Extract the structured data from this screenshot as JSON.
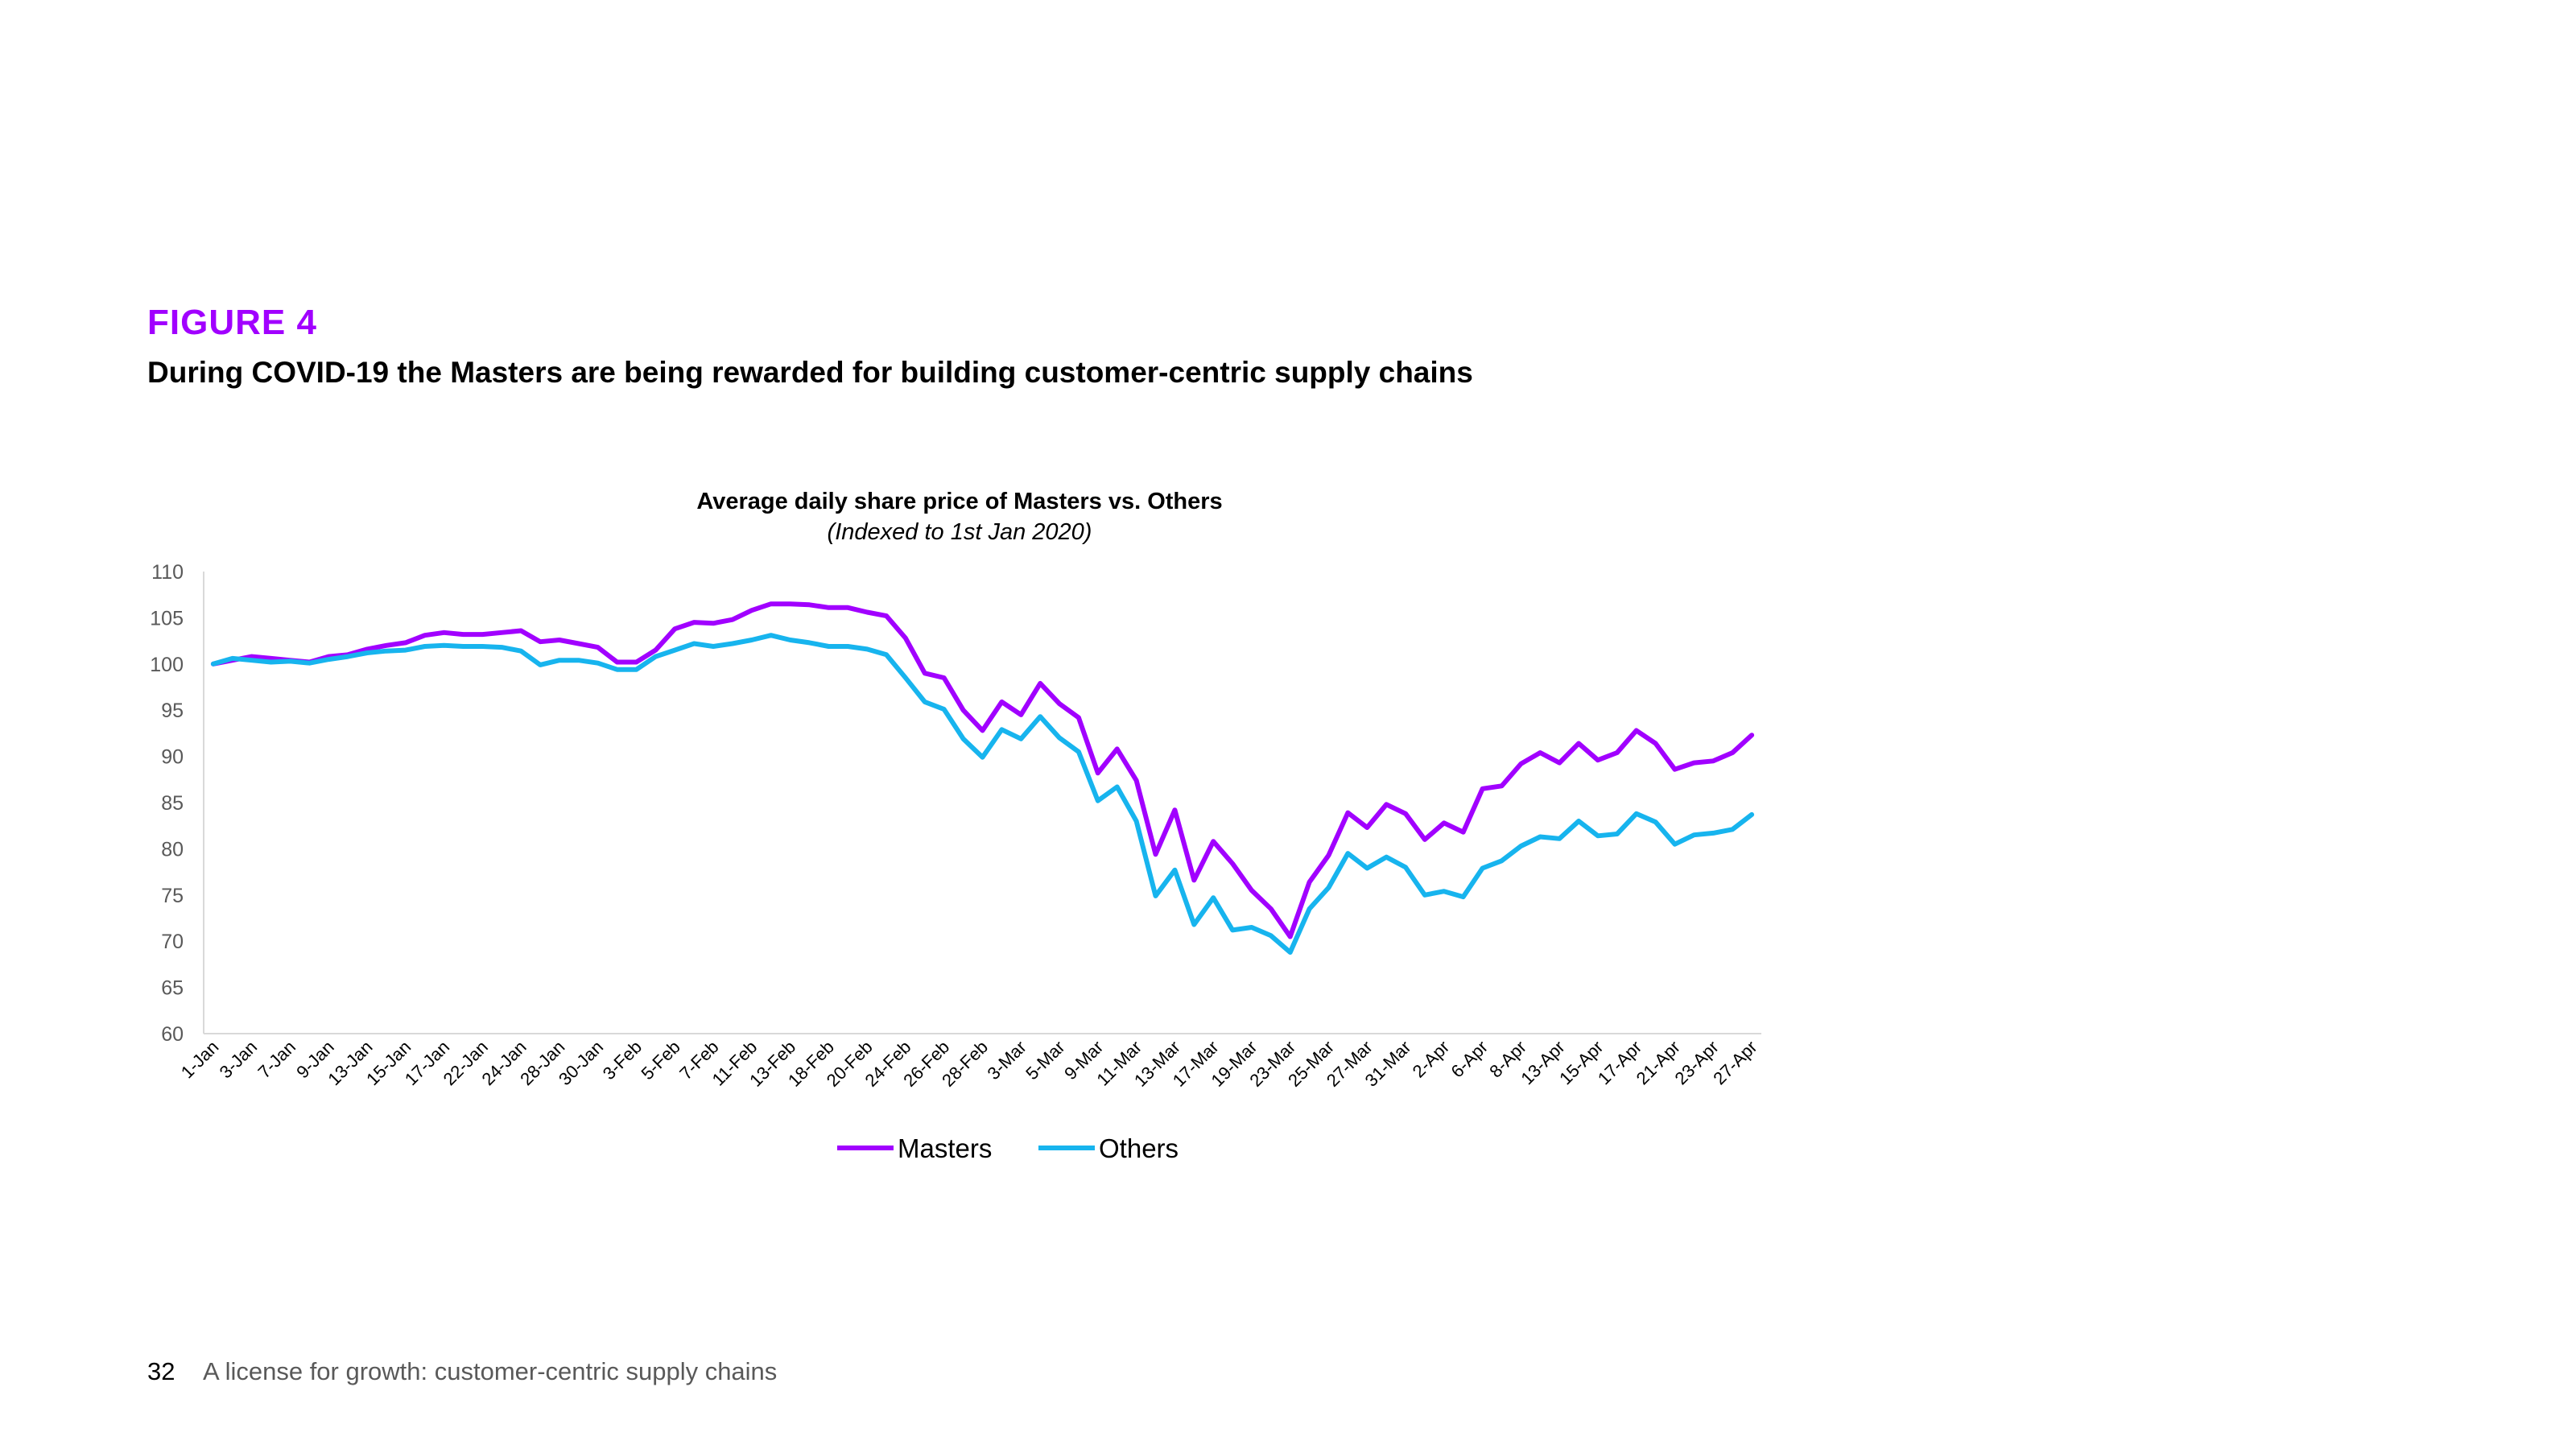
{
  "header": {
    "figure_label": "FIGURE 4",
    "title": "During COVID-19 the Masters are being rewarded for building customer-centric supply chains"
  },
  "footer": {
    "page_number": "32",
    "text": "A license for growth: customer-centric supply chains"
  },
  "colors": {
    "masters": "#a100ff",
    "others": "#17b4ee",
    "axis": "#d9d9d9"
  },
  "chart_data": {
    "type": "line",
    "title": "Average daily share price of Masters vs. Others",
    "subtitle": "(Indexed to 1st Jan 2020)",
    "ylim": [
      60,
      110
    ],
    "yticks": [
      60,
      65,
      70,
      75,
      80,
      85,
      90,
      95,
      100,
      105,
      110
    ],
    "x_tick_labels": [
      "1-Jan",
      "3-Jan",
      "7-Jan",
      "9-Jan",
      "13-Jan",
      "15-Jan",
      "17-Jan",
      "22-Jan",
      "24-Jan",
      "28-Jan",
      "30-Jan",
      "3-Feb",
      "5-Feb",
      "7-Feb",
      "11-Feb",
      "13-Feb",
      "18-Feb",
      "20-Feb",
      "24-Feb",
      "26-Feb",
      "28-Feb",
      "3-Mar",
      "5-Mar",
      "9-Mar",
      "11-Mar",
      "13-Mar",
      "17-Mar",
      "19-Mar",
      "23-Mar",
      "25-Mar",
      "27-Mar",
      "31-Mar",
      "2-Apr",
      "6-Apr",
      "8-Apr",
      "13-Apr",
      "15-Apr",
      "17-Apr",
      "21-Apr",
      "23-Apr",
      "27-Apr"
    ],
    "legend": [
      "Masters",
      "Others"
    ],
    "series": [
      {
        "name": "Masters",
        "values": [
          100,
          100.4,
          100.8,
          100.6,
          100.4,
          100.2,
          100.8,
          101,
          101.6,
          102,
          102.3,
          103.1,
          103.4,
          103.2,
          103.2,
          103.4,
          103.6,
          102.4,
          102.6,
          102.2,
          101.8,
          100.2,
          100.2,
          101.5,
          103.8,
          104.5,
          104.4,
          104.8,
          105.8,
          106.5,
          106.5,
          106.4,
          106.1,
          106.1,
          105.6,
          105.2,
          102.8,
          99,
          98.5,
          95,
          92.8,
          95.9,
          94.5,
          97.9,
          95.7,
          94.2,
          88.2,
          90.8,
          87.4,
          79.4,
          84.2,
          76.6,
          80.8,
          78.4,
          75.5,
          73.5,
          70.5,
          76.4,
          79.3,
          83.9,
          82.3,
          84.8,
          83.8,
          81,
          82.8,
          81.8,
          86.5,
          86.8,
          89.2,
          90.4,
          89.3,
          91.4,
          89.6,
          90.4,
          92.8,
          91.4,
          88.6,
          89.3,
          89.5,
          90.4,
          92.3
        ]
      },
      {
        "name": "Others",
        "values": [
          100,
          100.6,
          100.4,
          100.2,
          100.3,
          100.1,
          100.5,
          100.8,
          101.2,
          101.4,
          101.5,
          101.9,
          102,
          101.9,
          101.9,
          101.8,
          101.4,
          99.9,
          100.4,
          100.4,
          100.1,
          99.4,
          99.4,
          100.8,
          101.5,
          102.2,
          101.9,
          102.2,
          102.6,
          103.1,
          102.6,
          102.3,
          101.9,
          101.9,
          101.6,
          101,
          98.5,
          95.9,
          95.1,
          91.9,
          89.9,
          92.9,
          91.9,
          94.3,
          92,
          90.5,
          85.2,
          86.7,
          83,
          74.9,
          77.7,
          71.8,
          74.7,
          71.2,
          71.5,
          70.6,
          68.8,
          73.5,
          75.8,
          79.5,
          77.9,
          79.1,
          78,
          75,
          75.4,
          74.8,
          77.9,
          78.7,
          80.3,
          81.3,
          81.1,
          83,
          81.4,
          81.6,
          83.8,
          82.9,
          80.5,
          81.5,
          81.7,
          82.1,
          83.7
        ]
      }
    ]
  }
}
